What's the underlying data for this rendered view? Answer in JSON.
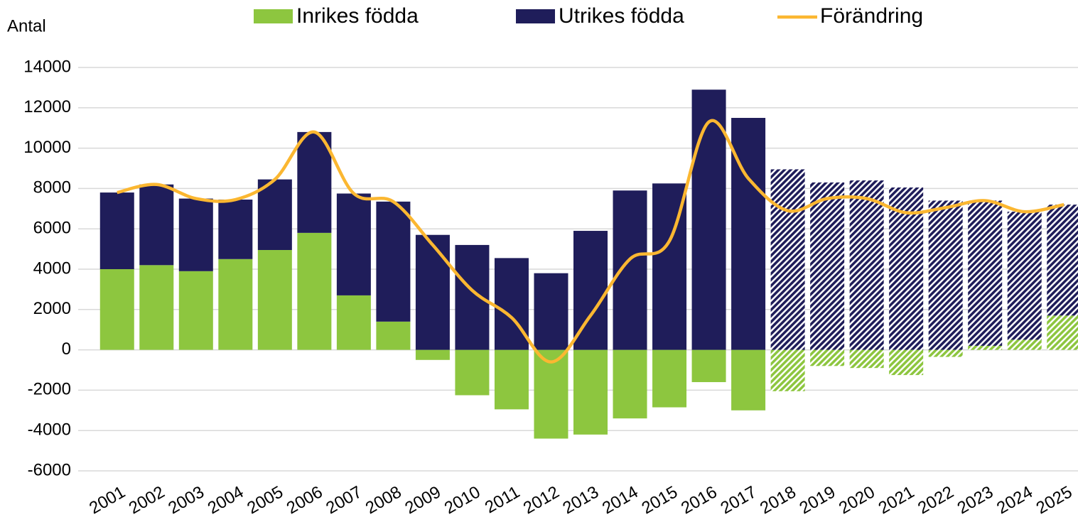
{
  "chart_data": {
    "type": "stacked_bar_line",
    "y_label": "Antal",
    "categories": [
      "2001",
      "2002",
      "2003",
      "2004",
      "2005",
      "2006",
      "2007",
      "2008",
      "2009",
      "2010",
      "2011",
      "2012",
      "2013",
      "2014",
      "2015",
      "2016",
      "2017",
      "2018",
      "2019",
      "2020",
      "2021",
      "2022",
      "2023",
      "2024",
      "2025"
    ],
    "series": [
      {
        "name": "Inrikes födda",
        "type": "bar",
        "color": "#8dc63f",
        "values": [
          4000,
          4200,
          3900,
          4500,
          4950,
          5800,
          2700,
          1400,
          -500,
          -2250,
          -2950,
          -4400,
          -4200,
          -3400,
          -2850,
          -1600,
          -3000,
          -2050,
          -800,
          -900,
          -1250,
          -350,
          200,
          500,
          1700
        ]
      },
      {
        "name": "Utrikes födda",
        "type": "bar",
        "color": "#1f1d5a",
        "values": [
          3800,
          4000,
          3600,
          2950,
          3500,
          5000,
          5050,
          5950,
          5700,
          5200,
          4550,
          3800,
          5900,
          7900,
          8250,
          12900,
          11500,
          8950,
          8300,
          8400,
          8050,
          7400,
          7200,
          6350,
          5500
        ]
      },
      {
        "name": "Förändring",
        "type": "line",
        "color": "#fbb731",
        "values": [
          7800,
          8200,
          7500,
          7450,
          8450,
          10800,
          7750,
          7350,
          5200,
          2950,
          1600,
          -600,
          1700,
          4500,
          5400,
          11300,
          8500,
          6900,
          7500,
          7500,
          6800,
          7050,
          7400,
          6850,
          7200
        ]
      }
    ],
    "hatch_from": "2018",
    "ylim": [
      -6000,
      14000
    ],
    "yticks": [
      -6000,
      -4000,
      -2000,
      0,
      2000,
      4000,
      6000,
      8000,
      10000,
      12000,
      14000
    ],
    "grid": true
  }
}
